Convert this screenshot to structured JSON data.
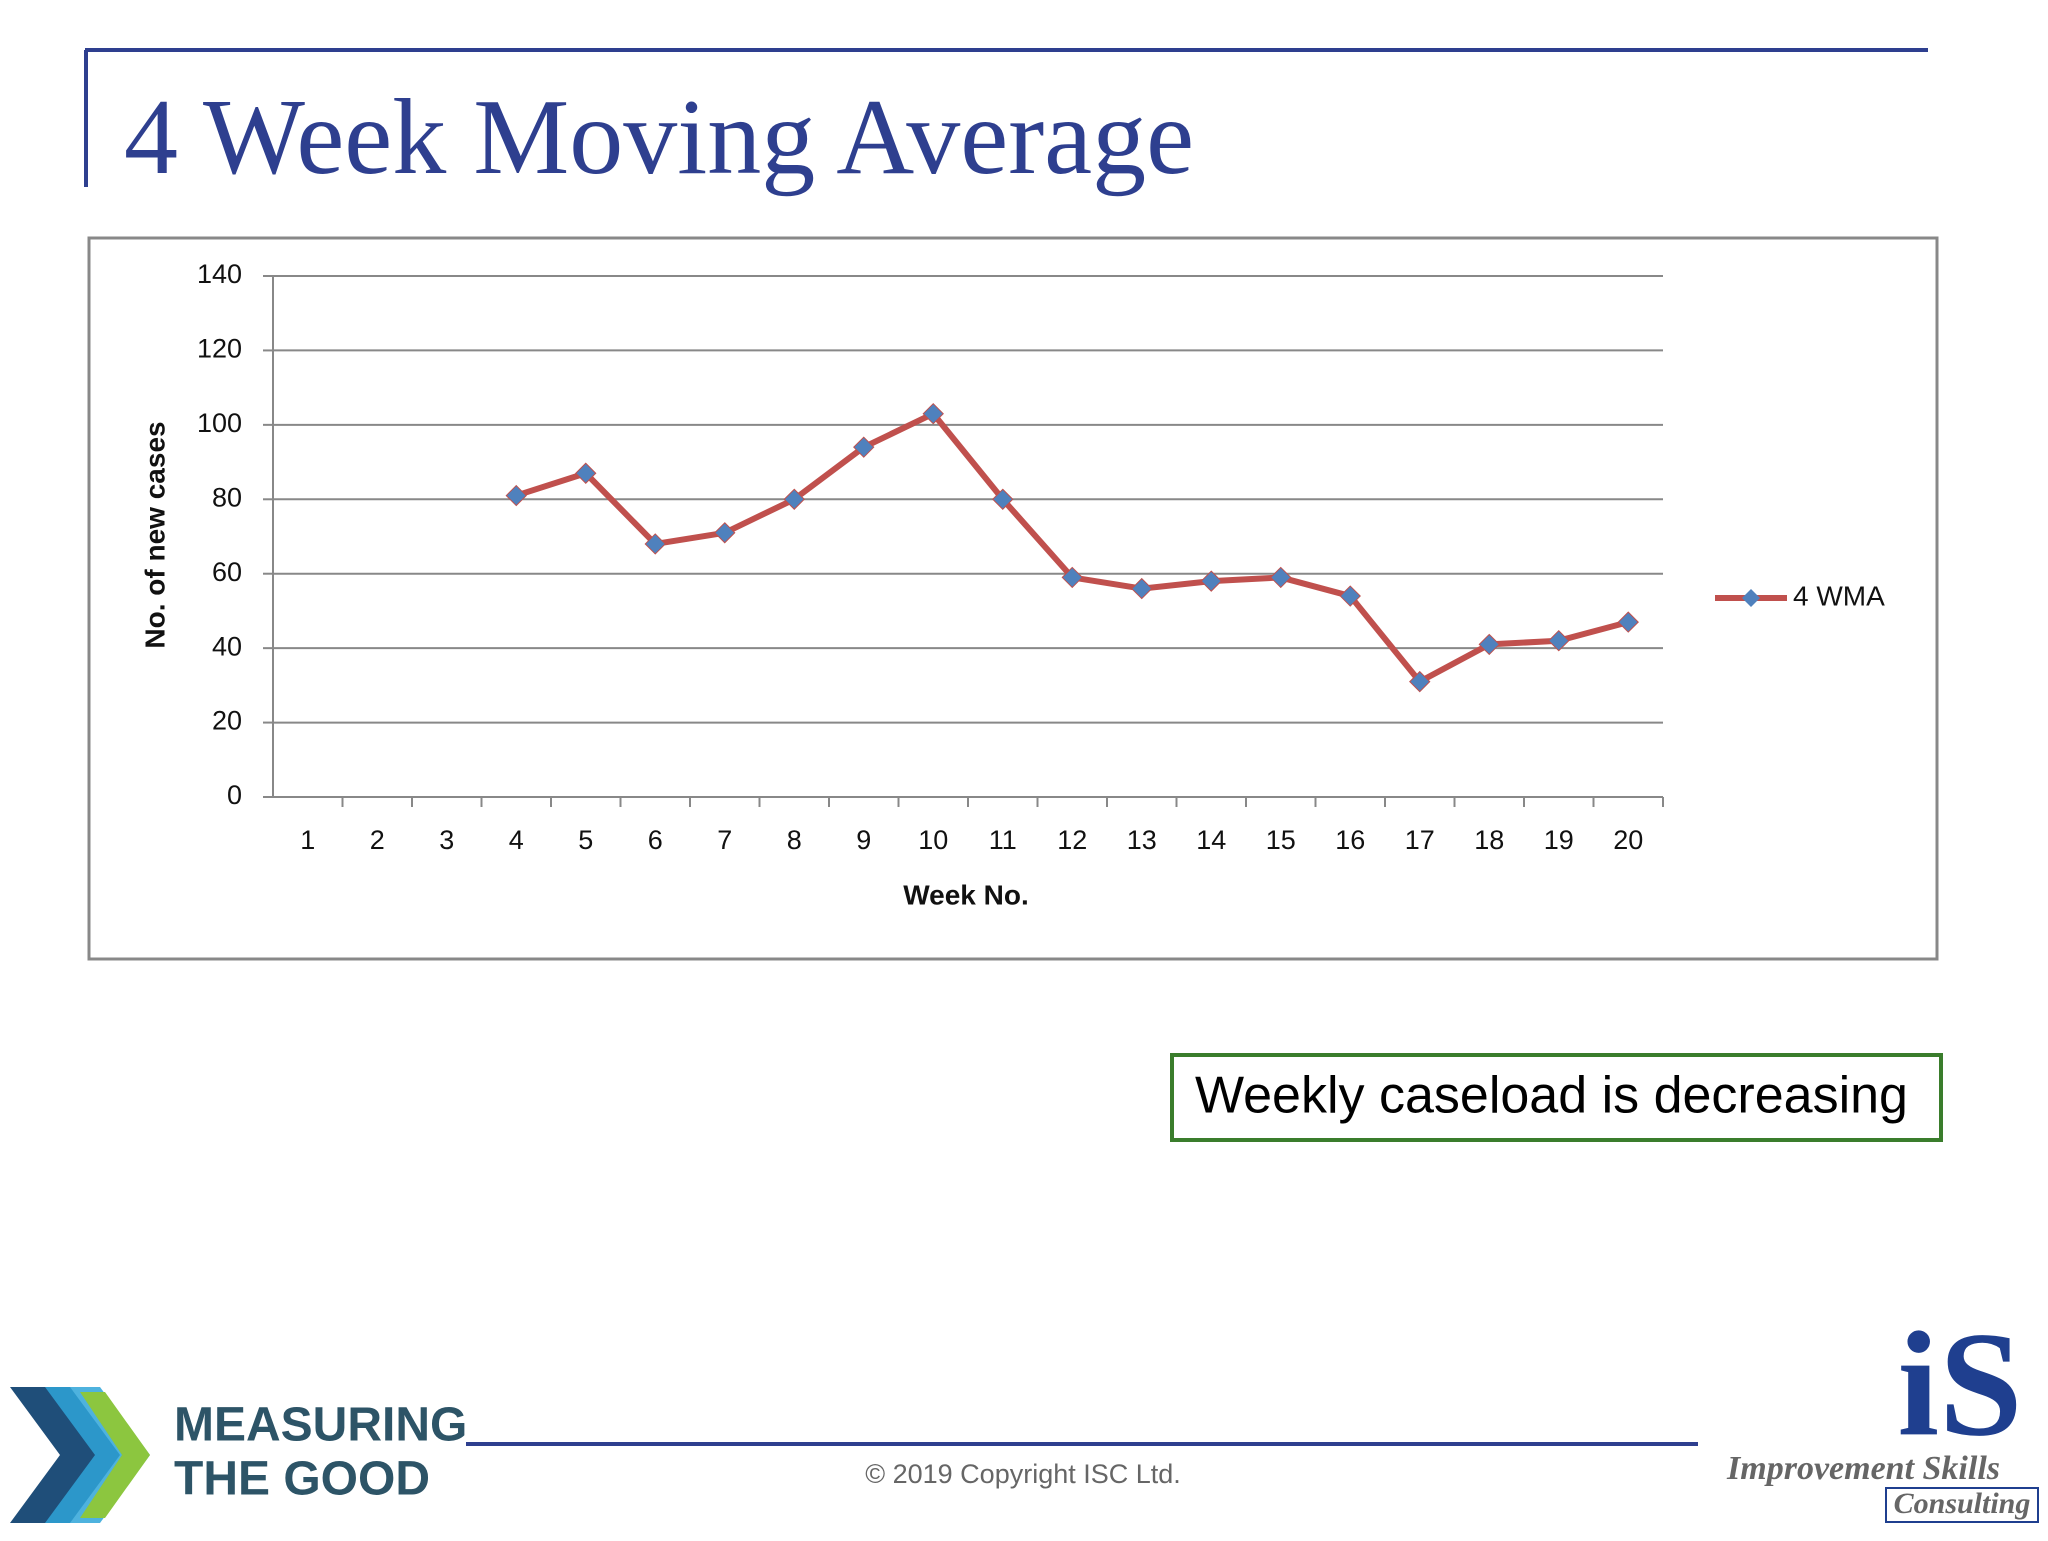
{
  "title": "4 Week Moving Average",
  "callout": "Weekly caseload is decreasing",
  "footer": "© 2019 Copyright ISC Ltd.",
  "logo_left": {
    "line1": "MEASURING",
    "line2": "THE GOOD"
  },
  "logo_right": {
    "mark": "iS",
    "line1": "Improvement Skills",
    "line2": "Consulting"
  },
  "chart_data": {
    "type": "line",
    "categories": [
      "1",
      "2",
      "3",
      "4",
      "5",
      "6",
      "7",
      "8",
      "9",
      "10",
      "11",
      "12",
      "13",
      "14",
      "15",
      "16",
      "17",
      "18",
      "19",
      "20"
    ],
    "series": [
      {
        "name": "4 WMA",
        "color": "#c0504d",
        "marker_color": "#4f81bd",
        "values": [
          null,
          null,
          null,
          81,
          87,
          68,
          71,
          80,
          94,
          103,
          80,
          59,
          56,
          58,
          59,
          54,
          31,
          41,
          42,
          47
        ]
      }
    ],
    "x_label": "Week No.",
    "y_label": "No. of new cases",
    "ylim": [
      0,
      140
    ],
    "yticks": [
      0,
      20,
      40,
      60,
      80,
      100,
      120,
      140
    ],
    "grid": true,
    "legend": "right"
  }
}
